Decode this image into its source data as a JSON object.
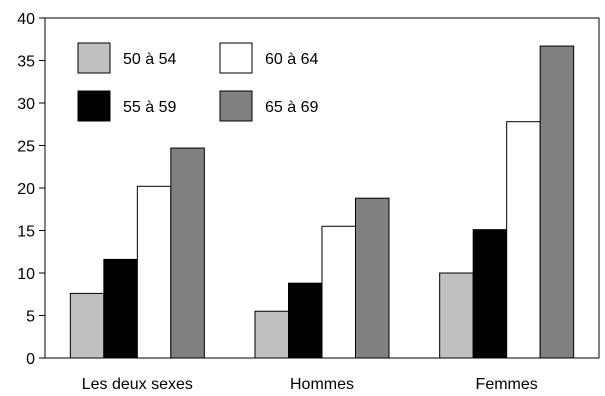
{
  "chart_data": {
    "type": "bar",
    "title": "",
    "xlabel": "",
    "ylabel": "",
    "categories": [
      "Les deux sexes",
      "Hommes",
      "Femmes"
    ],
    "series": [
      {
        "name": "50 à 54",
        "color": "#c0c0c0",
        "values": [
          7.6,
          5.5,
          10.0
        ]
      },
      {
        "name": "55 à 59",
        "color": "#000000",
        "values": [
          11.6,
          8.8,
          15.1
        ]
      },
      {
        "name": "60 à 64",
        "color": "#ffffff",
        "values": [
          20.2,
          15.5,
          27.8
        ]
      },
      {
        "name": "65 à 69",
        "color": "#808080",
        "values": [
          24.7,
          18.8,
          36.7
        ]
      }
    ],
    "ylim": [
      0,
      40
    ],
    "yticks": [
      0,
      5,
      10,
      15,
      20,
      25,
      30,
      35,
      40
    ],
    "grid": false,
    "legend_position": "top-left"
  }
}
